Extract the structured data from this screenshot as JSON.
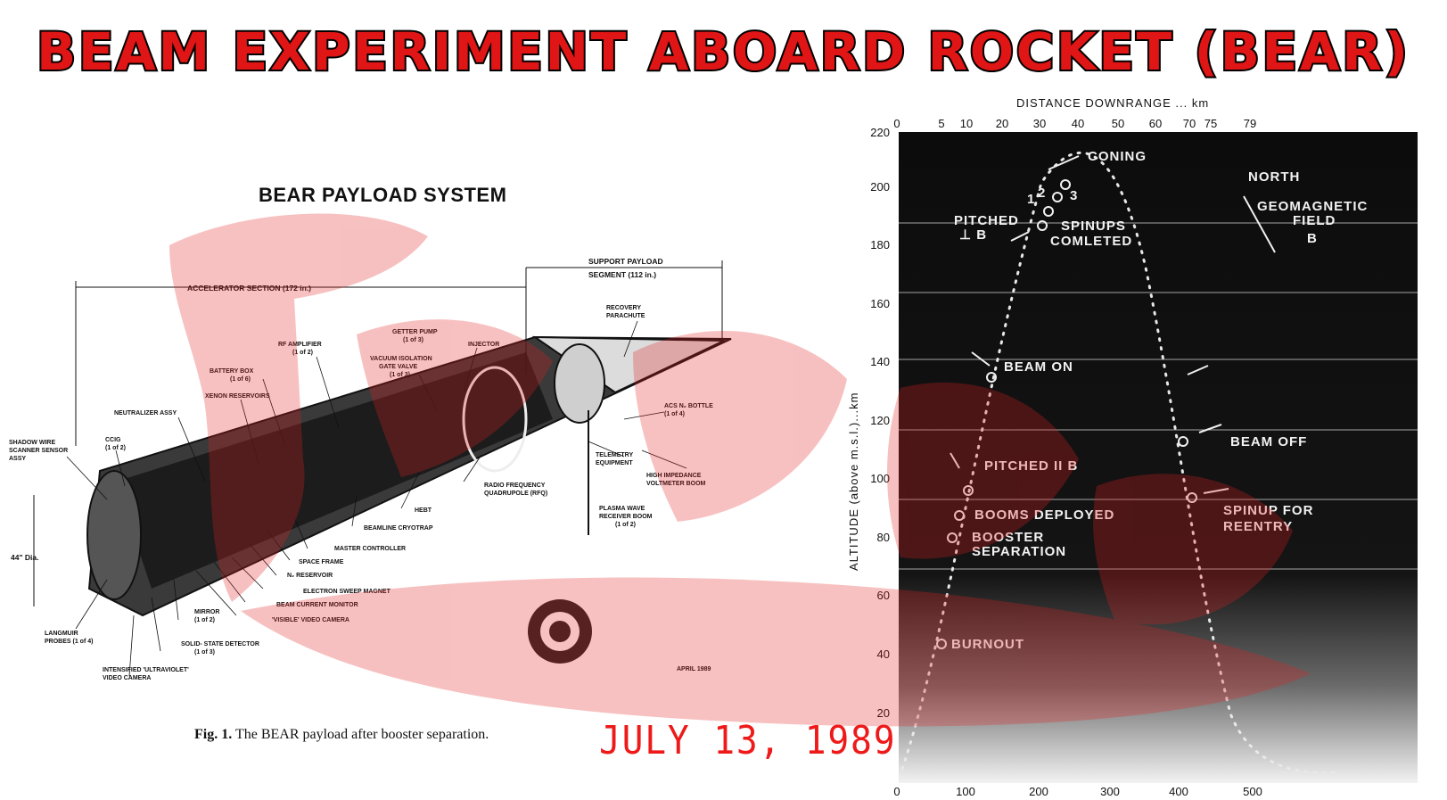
{
  "banner": {
    "title": "BEAM EXPERIMENT ABOARD ROCKET (BEAR)"
  },
  "payload": {
    "title": "BEAR PAYLOAD SYSTEM",
    "caption_fig": "Fig. 1.",
    "caption_text": "The BEAR payload after booster separation.",
    "date_note": "APRIL 1989",
    "diameter": "44\" Dia.",
    "accelerator_section": "ACCELERATOR SECTION (172 in.)",
    "support_segment_1": "SUPPORT PAYLOAD",
    "support_segment_2": "SEGMENT (112 in.)",
    "labels": {
      "recovery_parachute_1": "RECOVERY",
      "recovery_parachute_2": "PARACHUTE",
      "getter_pump_1": "GETTER PUMP",
      "getter_pump_2": "(1 of 3)",
      "injector": "INJECTOR",
      "rf_amplifier_1": "RF AMPLIFIER",
      "rf_amplifier_2": "(1 of 2)",
      "vacuum_valve_1": "VACUUM ISOLATION",
      "vacuum_valve_2": "GATE VALVE",
      "vacuum_valve_3": "(1 of 3)",
      "battery_box_1": "BATTERY BOX",
      "battery_box_2": "(1 of 6)",
      "xenon": "XENON RESERVOIRS",
      "neutralizer": "NEUTRALIZER ASSY",
      "shadow_wire_1": "SHADOW WIRE",
      "shadow_wire_2": "SCANNER SENSOR",
      "shadow_wire_3": "ASSY",
      "ccig_1": "CCIG",
      "ccig_2": "(1 of 2)",
      "acs_bottle_1": "ACS N₂ BOTTLE",
      "acs_bottle_2": "(1 of 4)",
      "telemetry_1": "TELEMETRY",
      "telemetry_2": "EQUIPMENT",
      "high_impedance_1": "HIGH IMPEDANCE",
      "high_impedance_2": "VOLTMETER BOOM",
      "rfq_1": "RADIO FREQUENCY",
      "rfq_2": "QUADRUPOLE (RFQ)",
      "hebt": "HEBT",
      "plasma_wave_1": "PLASMA WAVE",
      "plasma_wave_2": "RECEIVER BOOM",
      "plasma_wave_3": "(1 of 2)",
      "beamline_cryotrap": "BEAMLINE CRYOTRAP",
      "master_controller": "MASTER CONTROLLER",
      "space_frame": "SPACE FRAME",
      "n2_reservoir": "N₂ RESERVOIR",
      "electron_sweep": "ELECTRON SWEEP MAGNET",
      "beam_current": "BEAM CURRENT MONITOR",
      "visible_camera": "'VISIBLE' VIDEO CAMERA",
      "mirror_1": "MIRROR",
      "mirror_2": "(1 of 2)",
      "solid_state_1": "SOLID- STATE DETECTOR",
      "solid_state_2": "(1 of 3)",
      "uv_camera_1": "INTENSIFIED 'ULTRAVIOLET'",
      "uv_camera_2": "VIDEO CAMERA",
      "langmuir_1": "LANGMUIR",
      "langmuir_2": "PROBES (1 of 4)"
    }
  },
  "date_stamp": "JULY 13, 1989",
  "trajectory": {
    "top_axis_label": "DISTANCE DOWNRANGE ... km",
    "top_ticks": [
      "0",
      "5",
      "10",
      "20",
      "30",
      "40",
      "50",
      "60",
      "70",
      "75",
      "79"
    ],
    "y_axis_label": "ALTITUDE (above m.s.l.)...km",
    "y_ticks": [
      "20",
      "40",
      "60",
      "80",
      "100",
      "120",
      "140",
      "160",
      "180",
      "200",
      "220"
    ],
    "bottom_ticks": [
      "0",
      "100",
      "200",
      "300",
      "400",
      "500"
    ],
    "events": {
      "coning": "CONING",
      "north": "NORTH",
      "geo_1": "GEOMAGNETIC",
      "geo_2": "FIELD",
      "geo_b": "B",
      "pitched_perp_1": "PITCHED",
      "pitched_perp_2": "⊥ B",
      "spinups_1": "SPINUPS",
      "spinups_2": "COMLETED",
      "n1": "1",
      "n2": "2",
      "n3": "3",
      "beam_on": "BEAM ON",
      "beam_off": "BEAM OFF",
      "pitched_par": "PITCHED II B",
      "booms": "BOOMS DEPLOYED",
      "booster_1": "BOOSTER",
      "booster_2": "SEPARATION",
      "spinup_reentry_1": "SPINUP FOR",
      "spinup_reentry_2": "REENTRY",
      "burnout": "BURNOUT"
    },
    "colors": {
      "panel": "#0c0c0c",
      "gridline": "#d8d8d8"
    }
  }
}
